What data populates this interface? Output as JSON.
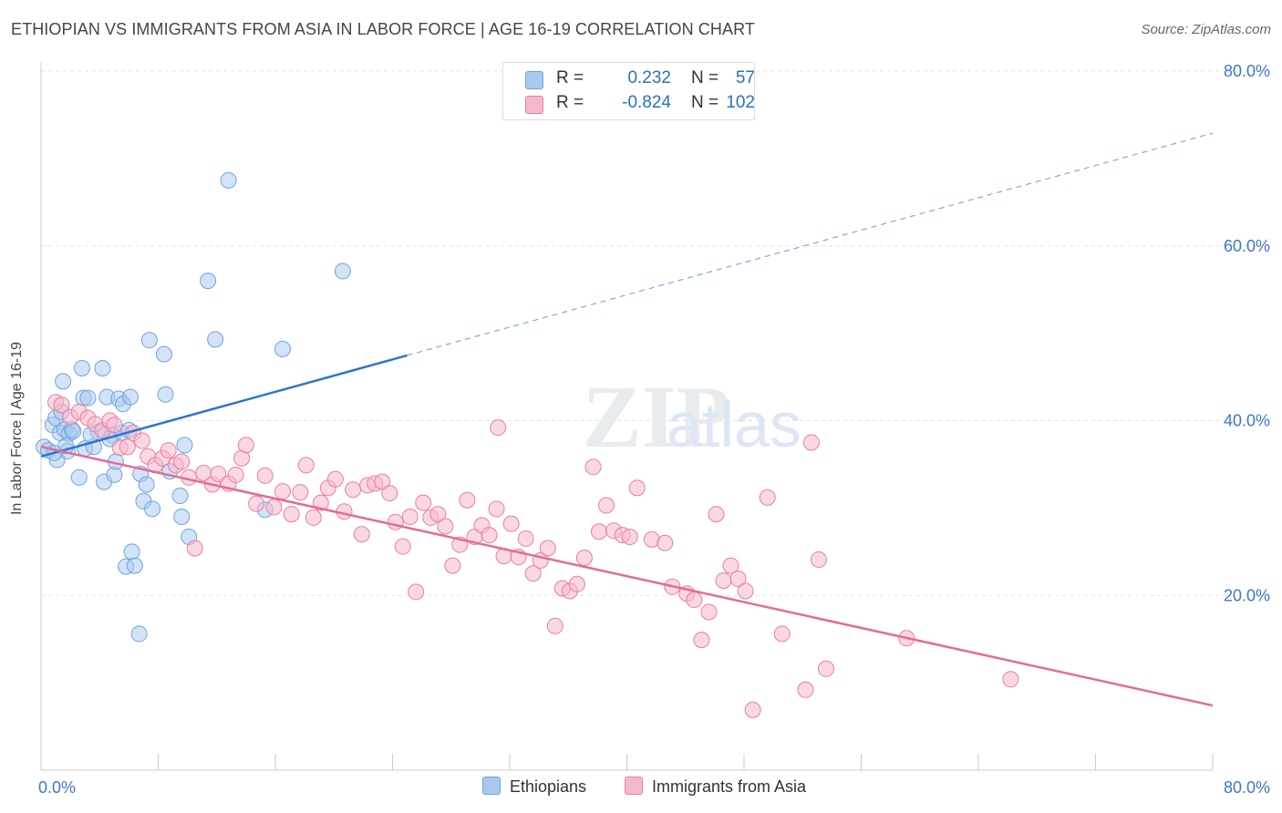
{
  "title": "ETHIOPIAN VS IMMIGRANTS FROM ASIA IN LABOR FORCE | AGE 16-19 CORRELATION CHART",
  "source": "Source: ZipAtlas.com",
  "watermark": "ZIPatlas",
  "legend_top": [
    {
      "name": "Ethiopians",
      "r_label": "R =",
      "r_value": "0.232",
      "n_label": "N =",
      "n_value": "57",
      "color": "#a8c8f0"
    },
    {
      "name": "Immigrants from Asia",
      "r_label": "R =",
      "r_value": "-0.824",
      "n_label": "N =",
      "n_value": "102",
      "color": "#f5b8cb"
    }
  ],
  "legend_bottom": [
    {
      "label": "Ethiopians",
      "color": "#a8c8f0"
    },
    {
      "label": "Immigrants from Asia",
      "color": "#f5b8cb"
    }
  ],
  "chart_data": {
    "type": "scatter",
    "title": "ETHIOPIAN VS IMMIGRANTS FROM ASIA IN LABOR FORCE | AGE 16-19 CORRELATION CHART",
    "xlabel": "",
    "ylabel": "In Labor Force | Age 16-19",
    "xlim": [
      0,
      80
    ],
    "ylim": [
      0,
      80
    ],
    "x_tick_labels": [
      "0.0%",
      "80.0%"
    ],
    "y_tick_labels": [
      "20.0%",
      "40.0%",
      "60.0%",
      "80.0%"
    ],
    "y_ticks": [
      20,
      40,
      60,
      80
    ],
    "grid": true,
    "legend_position": "top-center",
    "series": [
      {
        "name": "Ethiopians",
        "color": "#6fa3e0",
        "fill": "#a8c8f0",
        "points": [
          [
            0.2,
            37.0
          ],
          [
            0.5,
            36.6
          ],
          [
            0.8,
            39.5
          ],
          [
            1.0,
            40.3
          ],
          [
            1.1,
            35.5
          ],
          [
            1.3,
            38.6
          ],
          [
            1.5,
            44.5
          ],
          [
            1.6,
            39.0
          ],
          [
            1.8,
            36.5
          ],
          [
            1.9,
            38.5
          ],
          [
            2.1,
            39.0
          ],
          [
            2.6,
            33.5
          ],
          [
            2.8,
            46.0
          ],
          [
            2.9,
            42.6
          ],
          [
            3.0,
            36.8
          ],
          [
            3.2,
            42.6
          ],
          [
            3.6,
            37.0
          ],
          [
            3.9,
            38.7
          ],
          [
            4.2,
            46.0
          ],
          [
            4.3,
            33.0
          ],
          [
            4.5,
            42.7
          ],
          [
            4.9,
            38.3
          ],
          [
            5.0,
            33.8
          ],
          [
            5.1,
            35.3
          ],
          [
            5.3,
            42.5
          ],
          [
            5.5,
            38.6
          ],
          [
            5.6,
            41.9
          ],
          [
            5.8,
            23.3
          ],
          [
            6.1,
            42.7
          ],
          [
            6.2,
            25.0
          ],
          [
            6.4,
            23.4
          ],
          [
            6.7,
            15.6
          ],
          [
            6.8,
            33.9
          ],
          [
            7.0,
            30.8
          ],
          [
            7.2,
            32.7
          ],
          [
            7.4,
            49.2
          ],
          [
            7.6,
            29.9
          ],
          [
            8.4,
            47.6
          ],
          [
            8.5,
            43.0
          ],
          [
            8.8,
            34.2
          ],
          [
            9.5,
            31.4
          ],
          [
            9.6,
            29.0
          ],
          [
            9.8,
            37.2
          ],
          [
            10.1,
            26.7
          ],
          [
            11.4,
            56.0
          ],
          [
            11.9,
            49.3
          ],
          [
            12.8,
            67.5
          ],
          [
            15.3,
            29.8
          ],
          [
            16.5,
            48.2
          ],
          [
            20.6,
            57.1
          ],
          [
            1.7,
            37.1
          ],
          [
            2.2,
            38.8
          ],
          [
            3.4,
            38.4
          ],
          [
            4.7,
            37.9
          ],
          [
            0.9,
            36.3
          ],
          [
            1.4,
            41.0
          ],
          [
            6.0,
            38.9
          ]
        ]
      },
      {
        "name": "Immigrants from Asia",
        "color": "#e97fa0",
        "fill": "#f5b8cb",
        "points": [
          [
            1.0,
            42.1
          ],
          [
            1.4,
            41.8
          ],
          [
            2.0,
            40.4
          ],
          [
            2.6,
            41.0
          ],
          [
            3.2,
            40.3
          ],
          [
            3.7,
            39.6
          ],
          [
            4.2,
            38.9
          ],
          [
            4.7,
            40.0
          ],
          [
            5.0,
            39.5
          ],
          [
            5.4,
            36.9
          ],
          [
            5.9,
            37.0
          ],
          [
            6.3,
            38.6
          ],
          [
            6.9,
            37.7
          ],
          [
            7.3,
            35.9
          ],
          [
            7.8,
            34.9
          ],
          [
            8.3,
            35.7
          ],
          [
            8.7,
            36.6
          ],
          [
            9.2,
            34.9
          ],
          [
            9.6,
            35.3
          ],
          [
            10.1,
            33.5
          ],
          [
            10.5,
            25.4
          ],
          [
            11.1,
            34.0
          ],
          [
            11.7,
            32.7
          ],
          [
            12.1,
            33.9
          ],
          [
            12.8,
            32.8
          ],
          [
            13.3,
            33.8
          ],
          [
            13.7,
            35.7
          ],
          [
            14.0,
            37.2
          ],
          [
            14.7,
            30.5
          ],
          [
            15.3,
            33.7
          ],
          [
            15.9,
            30.1
          ],
          [
            16.5,
            31.9
          ],
          [
            17.1,
            29.3
          ],
          [
            17.7,
            31.8
          ],
          [
            18.1,
            34.9
          ],
          [
            18.6,
            28.9
          ],
          [
            19.1,
            30.6
          ],
          [
            19.6,
            32.3
          ],
          [
            20.1,
            33.3
          ],
          [
            20.7,
            29.6
          ],
          [
            21.3,
            32.1
          ],
          [
            21.9,
            27.0
          ],
          [
            22.3,
            32.6
          ],
          [
            22.8,
            32.8
          ],
          [
            23.3,
            33.0
          ],
          [
            23.8,
            31.7
          ],
          [
            24.2,
            28.4
          ],
          [
            24.7,
            25.6
          ],
          [
            25.2,
            29.0
          ],
          [
            25.6,
            20.4
          ],
          [
            26.1,
            30.6
          ],
          [
            26.6,
            28.9
          ],
          [
            27.1,
            29.3
          ],
          [
            27.6,
            27.9
          ],
          [
            28.1,
            23.4
          ],
          [
            28.6,
            25.8
          ],
          [
            29.1,
            30.9
          ],
          [
            29.6,
            26.7
          ],
          [
            30.1,
            28.0
          ],
          [
            30.6,
            26.9
          ],
          [
            31.1,
            29.9
          ],
          [
            31.6,
            24.5
          ],
          [
            32.1,
            28.2
          ],
          [
            32.6,
            24.4
          ],
          [
            33.1,
            26.5
          ],
          [
            33.6,
            22.5
          ],
          [
            34.1,
            24.0
          ],
          [
            34.6,
            25.4
          ],
          [
            35.1,
            16.5
          ],
          [
            35.6,
            20.8
          ],
          [
            36.1,
            20.5
          ],
          [
            36.6,
            21.3
          ],
          [
            37.1,
            24.3
          ],
          [
            37.7,
            34.7
          ],
          [
            38.1,
            27.3
          ],
          [
            38.6,
            30.3
          ],
          [
            39.1,
            27.4
          ],
          [
            39.7,
            26.9
          ],
          [
            40.2,
            26.7
          ],
          [
            40.7,
            32.3
          ],
          [
            41.7,
            26.4
          ],
          [
            42.6,
            26.0
          ],
          [
            43.1,
            21.0
          ],
          [
            44.1,
            20.2
          ],
          [
            44.6,
            19.5
          ],
          [
            45.1,
            14.9
          ],
          [
            45.6,
            18.1
          ],
          [
            46.1,
            29.3
          ],
          [
            46.6,
            21.7
          ],
          [
            47.1,
            23.4
          ],
          [
            47.6,
            21.9
          ],
          [
            48.1,
            20.5
          ],
          [
            48.6,
            6.9
          ],
          [
            49.6,
            31.2
          ],
          [
            50.6,
            15.6
          ],
          [
            52.2,
            9.2
          ],
          [
            52.6,
            37.5
          ],
          [
            53.1,
            24.1
          ],
          [
            53.6,
            11.6
          ],
          [
            59.1,
            15.1
          ],
          [
            66.2,
            10.4
          ],
          [
            31.2,
            39.2
          ]
        ]
      }
    ],
    "trendlines": [
      {
        "series": "Ethiopians",
        "solid_x": [
          0,
          25
        ],
        "dashed_x": [
          25,
          80
        ],
        "y_at_0": 35.9,
        "y_at_80": 72.9
      },
      {
        "series": "Immigrants from Asia",
        "x": [
          0,
          80
        ],
        "y_at_0": 37.0,
        "y_at_80": 7.4
      }
    ]
  }
}
